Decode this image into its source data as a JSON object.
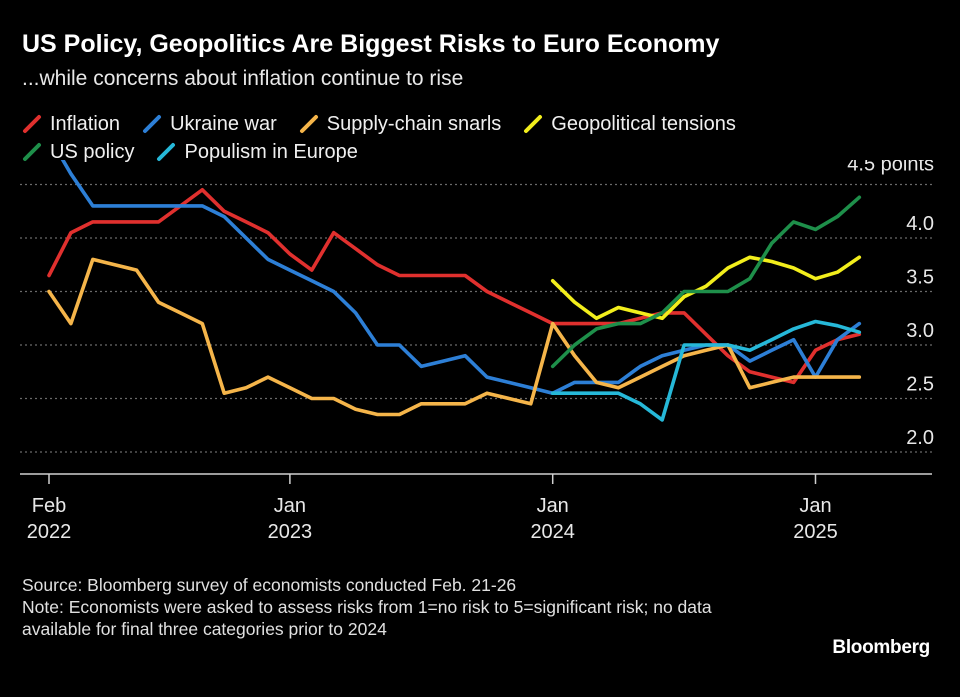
{
  "title": "US Policy, Geopolitics Are Biggest Risks to Euro Economy",
  "subtitle": "...while concerns about inflation continue to rise",
  "source": "Source: Bloomberg survey of economists conducted Feb. 21-26",
  "note": "Note: Economists were asked to assess risks from 1=no risk to 5=significant risk; no data available for final three categories prior to 2024",
  "brand": "Bloomberg",
  "chart_data": {
    "type": "line",
    "ylim": [
      1.9,
      4.5
    ],
    "y_ticks": [
      2.0,
      2.5,
      3.0,
      3.5,
      4.0
    ],
    "y_tick_labels": [
      "2.0",
      "2.5",
      "3.0",
      "3.5",
      "4.0"
    ],
    "y_unit_label": "4.5 points",
    "x_ticks": [
      {
        "x": 0,
        "line1": "Feb",
        "line2": "2022"
      },
      {
        "x": 11,
        "line1": "Jan",
        "line2": "2023"
      },
      {
        "x": 23,
        "line1": "Jan",
        "line2": "2024"
      },
      {
        "x": 35,
        "line1": "Jan",
        "line2": "2025"
      }
    ],
    "series": [
      {
        "name": "Inflation",
        "color": "#e0302e",
        "x": [
          0,
          1,
          2,
          3,
          4,
          5,
          6,
          7,
          8,
          9,
          10,
          11,
          12,
          13,
          14,
          15,
          16,
          17,
          18,
          19,
          20,
          21,
          22,
          23,
          24,
          25,
          26,
          27,
          28,
          29,
          30,
          31,
          32,
          33,
          34,
          35,
          36,
          37
        ],
        "y": [
          3.65,
          4.05,
          4.15,
          4.15,
          4.15,
          4.15,
          4.3,
          4.45,
          4.25,
          4.15,
          4.05,
          3.85,
          3.7,
          4.05,
          3.9,
          3.75,
          3.65,
          3.65,
          3.65,
          3.65,
          3.5,
          3.4,
          3.3,
          3.2,
          3.2,
          3.2,
          3.2,
          3.25,
          3.3,
          3.3,
          3.1,
          2.9,
          2.75,
          2.7,
          2.65,
          2.95,
          3.05,
          3.1
        ]
      },
      {
        "name": "Ukraine war",
        "color": "#2d7fd6",
        "x": [
          0,
          1,
          2,
          3,
          4,
          5,
          6,
          7,
          8,
          9,
          10,
          11,
          12,
          13,
          14,
          15,
          16,
          17,
          18,
          19,
          20,
          21,
          22,
          23,
          24,
          25,
          26,
          27,
          28,
          29,
          30,
          31,
          32,
          33,
          34,
          35,
          36,
          37
        ],
        "y": [
          4.95,
          4.6,
          4.3,
          4.3,
          4.3,
          4.3,
          4.3,
          4.3,
          4.2,
          4.0,
          3.8,
          3.7,
          3.6,
          3.5,
          3.3,
          3.0,
          3.0,
          2.8,
          2.85,
          2.9,
          2.7,
          2.65,
          2.6,
          2.55,
          2.65,
          2.65,
          2.65,
          2.8,
          2.9,
          2.95,
          3.0,
          3.0,
          2.85,
          2.95,
          3.05,
          2.7,
          3.05,
          3.2
        ]
      },
      {
        "name": "Supply-chain snarls",
        "color": "#f5b54a",
        "x": [
          0,
          1,
          2,
          3,
          4,
          5,
          6,
          7,
          8,
          9,
          10,
          11,
          12,
          13,
          14,
          15,
          16,
          17,
          18,
          19,
          20,
          21,
          22,
          23,
          24,
          25,
          26,
          27,
          28,
          29,
          30,
          31,
          32,
          33,
          34,
          35,
          36,
          37
        ],
        "y": [
          3.5,
          3.2,
          3.8,
          3.75,
          3.7,
          3.4,
          3.3,
          3.2,
          2.55,
          2.6,
          2.7,
          2.6,
          2.5,
          2.5,
          2.4,
          2.35,
          2.35,
          2.45,
          2.45,
          2.45,
          2.55,
          2.5,
          2.45,
          3.2,
          2.9,
          2.65,
          2.6,
          2.7,
          2.8,
          2.9,
          2.95,
          3.0,
          2.6,
          2.65,
          2.7,
          2.7,
          2.7,
          2.7
        ]
      },
      {
        "name": "Geopolitical tensions",
        "color": "#f2ee1c",
        "x": [
          23,
          24,
          25,
          26,
          27,
          28,
          29,
          30,
          31,
          32,
          33,
          34,
          35,
          36,
          37
        ],
        "y": [
          3.6,
          3.4,
          3.25,
          3.35,
          3.3,
          3.25,
          3.45,
          3.55,
          3.72,
          3.82,
          3.78,
          3.72,
          3.62,
          3.68,
          3.82
        ]
      },
      {
        "name": "US policy",
        "color": "#1e8f4a",
        "x": [
          23,
          24,
          25,
          26,
          27,
          28,
          29,
          30,
          31,
          32,
          33,
          34,
          35,
          36,
          37
        ],
        "y": [
          2.8,
          3.0,
          3.15,
          3.2,
          3.2,
          3.3,
          3.5,
          3.5,
          3.5,
          3.62,
          3.95,
          4.15,
          4.08,
          4.2,
          4.38
        ]
      },
      {
        "name": "Populism in Europe",
        "color": "#26b8d8",
        "x": [
          23,
          24,
          25,
          26,
          27,
          28,
          29,
          30,
          31,
          32,
          33,
          34,
          35,
          36,
          37
        ],
        "y": [
          2.55,
          2.55,
          2.55,
          2.55,
          2.45,
          2.3,
          3.0,
          3.0,
          3.0,
          2.95,
          3.05,
          3.15,
          3.22,
          3.18,
          3.12
        ]
      }
    ]
  }
}
